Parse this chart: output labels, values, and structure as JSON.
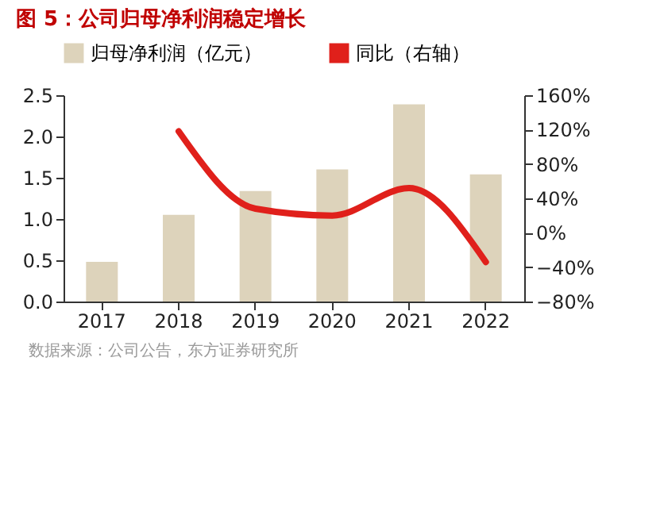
{
  "chart_data": {
    "type": "bar",
    "title": "图 5：公司归母净利润稳定增长",
    "annotations": [
      "数据来源：公司公告，东方证券研究所"
    ],
    "categories": [
      "2017",
      "2018",
      "2019",
      "2020",
      "2021",
      "2022"
    ],
    "series": [
      {
        "name": "归母净利润（亿元）",
        "color": "#ddd3bb",
        "values": [
          0.48,
          1.05,
          1.34,
          1.6,
          2.39,
          1.54
        ]
      },
      {
        "name": "同比（右轴）",
        "type": "line",
        "axis": "y2",
        "color": "#e0201b",
        "values": [
          null,
          118,
          28,
          20,
          52,
          -34
        ]
      }
    ],
    "ylim": [
      0,
      2.5
    ],
    "yticks": [
      {
        "value": 0,
        "label": "0.0"
      },
      {
        "value": 0.5,
        "label": "0.5"
      },
      {
        "value": 1,
        "label": "1.0"
      },
      {
        "value": 1.5,
        "label": "1.5"
      },
      {
        "value": 2,
        "label": "2.0"
      },
      {
        "value": 2.5,
        "label": "2.5"
      }
    ],
    "y2lim": [
      -80,
      160
    ],
    "y2ticks": [
      {
        "value": -80,
        "label": "−80%"
      },
      {
        "value": -40,
        "label": "−40%"
      },
      {
        "value": 0,
        "label": "0%"
      },
      {
        "value": 40,
        "label": "40%"
      },
      {
        "value": 80,
        "label": "80%"
      },
      {
        "value": 120,
        "label": "120%"
      },
      {
        "value": 160,
        "label": "160%"
      }
    ],
    "grid": false,
    "legend": "top"
  }
}
